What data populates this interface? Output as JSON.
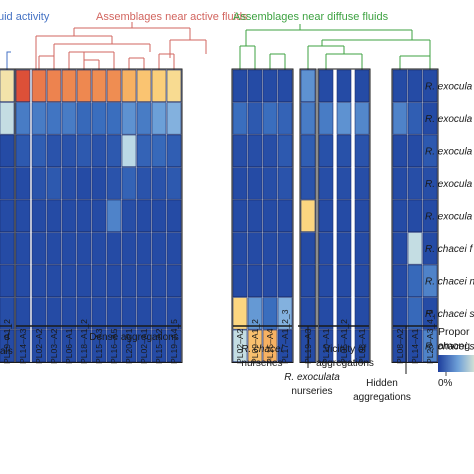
{
  "chart_data": {
    "type": "heatmap",
    "header": {
      "left_fragment": "uid activity",
      "active": "Assemblages near active fluids",
      "diffuse": "Assemblages near diffuse fluids"
    },
    "colors": {
      "active": "#d2655f",
      "diffuse": "#3da241",
      "left": "#4472c4",
      "low": "#1d3e9c",
      "mid": "#e9f0d4",
      "high": "#d6322a"
    },
    "rows": [
      "R. exocula",
      "R. exocula",
      "R. exocula",
      "R. exocula",
      "R. exocula",
      "R. chacei f",
      "R. chacei n",
      "R. chacei s",
      "R. chacei s"
    ],
    "columns": [
      "PL19–A1_2",
      "PL14–A3",
      "PL02–A2",
      "PL03–A2",
      "PL06–A1",
      "PL18–A1_2",
      "PL15–A3",
      "PL16–A5",
      "PL20–P1",
      "PL02–A1",
      "PL15–A2",
      "PL19–A4_5",
      "PL02–A2",
      "PL09–A1_2",
      "PL15–A4",
      "PL17–A1_2_3",
      "PL19–A3",
      "PL10–A1",
      "PL05–A1_2",
      "PL08–A1",
      "PL08–A2",
      "PL14–A1",
      "PL20–A3_4_5"
    ],
    "values": [
      [
        0.55,
        0.92,
        0.82,
        0.8,
        0.79,
        0.79,
        0.78,
        0.78,
        0.7,
        0.65,
        0.62,
        0.58,
        0.05,
        0.05,
        0.05,
        0.05,
        0.28,
        0.05,
        0.05,
        0.05,
        0.05,
        0.05,
        0.05
      ],
      [
        0.46,
        0.22,
        0.22,
        0.2,
        0.22,
        0.16,
        0.18,
        0.18,
        0.28,
        0.22,
        0.32,
        0.36,
        0.18,
        0.1,
        0.18,
        0.14,
        0.22,
        0.22,
        0.28,
        0.25,
        0.24,
        0.12,
        0.05
      ],
      [
        0.05,
        0.1,
        0.12,
        0.08,
        0.08,
        0.1,
        0.08,
        0.1,
        0.45,
        0.14,
        0.16,
        0.12,
        0.06,
        0.06,
        0.06,
        0.1,
        0.12,
        0.07,
        0.07,
        0.08,
        0.05,
        0.05,
        0.1
      ],
      [
        0.05,
        0.05,
        0.08,
        0.1,
        0.06,
        0.05,
        0.05,
        0.08,
        0.14,
        0.08,
        0.08,
        0.1,
        0.05,
        0.05,
        0.06,
        0.08,
        0.08,
        0.06,
        0.06,
        0.06,
        0.05,
        0.06,
        0.06
      ],
      [
        0.05,
        0.05,
        0.05,
        0.05,
        0.05,
        0.05,
        0.05,
        0.24,
        0.06,
        0.05,
        0.05,
        0.05,
        0.05,
        0.05,
        0.05,
        0.05,
        0.6,
        0.05,
        0.05,
        0.05,
        0.05,
        0.05,
        0.05
      ],
      [
        0.05,
        0.05,
        0.05,
        0.05,
        0.05,
        0.05,
        0.05,
        0.05,
        0.05,
        0.05,
        0.05,
        0.05,
        0.05,
        0.05,
        0.05,
        0.05,
        0.05,
        0.05,
        0.05,
        0.05,
        0.05,
        0.46,
        0.05
      ],
      [
        0.05,
        0.05,
        0.05,
        0.05,
        0.05,
        0.05,
        0.05,
        0.05,
        0.05,
        0.05,
        0.05,
        0.05,
        0.05,
        0.05,
        0.05,
        0.05,
        0.05,
        0.05,
        0.05,
        0.05,
        0.05,
        0.16,
        0.24
      ],
      [
        0.06,
        0.05,
        0.05,
        0.05,
        0.05,
        0.05,
        0.05,
        0.05,
        0.05,
        0.05,
        0.05,
        0.05,
        0.6,
        0.3,
        0.18,
        0.36,
        0.05,
        0.05,
        0.05,
        0.05,
        0.05,
        0.16,
        0.05
      ],
      [
        0.05,
        0.05,
        0.05,
        0.05,
        0.05,
        0.05,
        0.05,
        0.05,
        0.05,
        0.05,
        0.05,
        0.05,
        0.46,
        0.66,
        0.7,
        0.05,
        0.05,
        0.05,
        0.05,
        0.05,
        0.05,
        0.05,
        0.24
      ]
    ],
    "group_labels": {
      "left_fragment_a": "d",
      "left_fragment_b": "als",
      "dense": "Dense aggregations",
      "chacei_nurseries_1": "R. chacei",
      "chacei_nurseries_2": "nurseries",
      "exoculata_nurseries_1": "R. exoculata",
      "exoculata_nurseries_2": "nurseries",
      "vicinity_1": "Vicinity of",
      "vicinity_2": "aggregations",
      "hidden_1": "Hidden",
      "hidden_2": "aggregations"
    },
    "legend": {
      "title_1": "Propor",
      "title_2": "among",
      "min_label": "0%"
    }
  }
}
